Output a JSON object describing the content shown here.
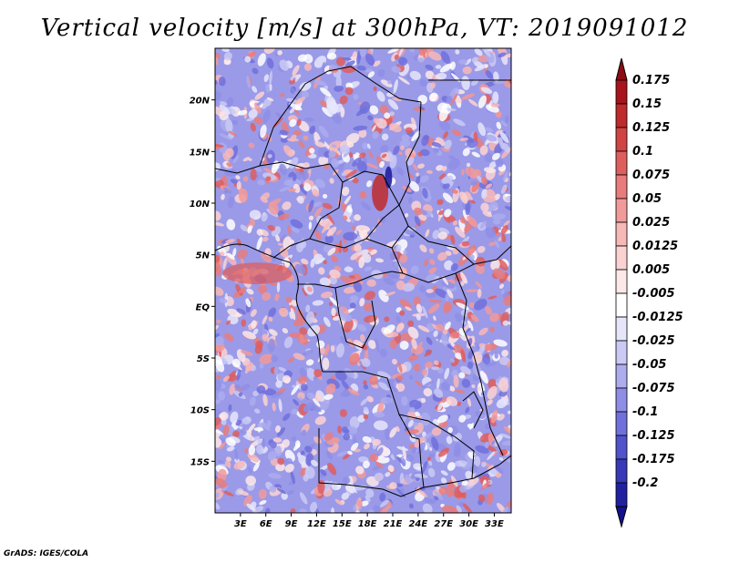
{
  "title": "Vertical velocity [m/s] at 300hPa, VT: 2019091012",
  "footer": "GrADS: IGES/COLA",
  "map": {
    "lon_range": [
      0,
      35
    ],
    "lat_range": [
      -20,
      25
    ],
    "lat_ticks": [
      {
        "label": "20N",
        "value": 20
      },
      {
        "label": "15N",
        "value": 15
      },
      {
        "label": "10N",
        "value": 10
      },
      {
        "label": "5N",
        "value": 5
      },
      {
        "label": "EQ",
        "value": 0
      },
      {
        "label": "5S",
        "value": -5
      },
      {
        "label": "10S",
        "value": -10
      },
      {
        "label": "15S",
        "value": -15
      }
    ],
    "lon_ticks": [
      {
        "label": "3E",
        "value": 3
      },
      {
        "label": "6E",
        "value": 6
      },
      {
        "label": "9E",
        "value": 9
      },
      {
        "label": "12E",
        "value": 12
      },
      {
        "label": "15E",
        "value": 15
      },
      {
        "label": "18E",
        "value": 18
      },
      {
        "label": "21E",
        "value": 21
      },
      {
        "label": "24E",
        "value": 24
      },
      {
        "label": "27E",
        "value": 27
      },
      {
        "label": "30E",
        "value": 30
      },
      {
        "label": "33E",
        "value": 33
      }
    ]
  },
  "colorbar": {
    "levels": [
      {
        "label": "0.175",
        "color": "#a8141c"
      },
      {
        "label": "0.15",
        "color": "#bf2a2c"
      },
      {
        "label": "0.125",
        "color": "#d14444"
      },
      {
        "label": "0.1",
        "color": "#de5e5e"
      },
      {
        "label": "0.075",
        "color": "#e87c7c"
      },
      {
        "label": "0.05",
        "color": "#f19a9a"
      },
      {
        "label": "0.025",
        "color": "#f7b8b8"
      },
      {
        "label": "0.0125",
        "color": "#fbd2d2"
      },
      {
        "label": "0.005",
        "color": "#fde8e8"
      },
      {
        "label": "-0.005",
        "color": "#ffffff"
      },
      {
        "label": "-0.0125",
        "color": "#e6e6fb"
      },
      {
        "label": "-0.025",
        "color": "#cacaf5"
      },
      {
        "label": "-0.05",
        "color": "#acacee"
      },
      {
        "label": "-0.075",
        "color": "#8e8ee6"
      },
      {
        "label": "-0.1",
        "color": "#7070dc"
      },
      {
        "label": "-0.125",
        "color": "#5252cc"
      },
      {
        "label": "-0.175",
        "color": "#3838b8"
      },
      {
        "label": "-0.2",
        "color": "#2020a0"
      }
    ],
    "top_arrow_color": "#8c0c14",
    "bottom_arrow_color": "#14108c"
  },
  "colors": {
    "background_blue": "#9a9ae8",
    "frame": "#000000"
  }
}
